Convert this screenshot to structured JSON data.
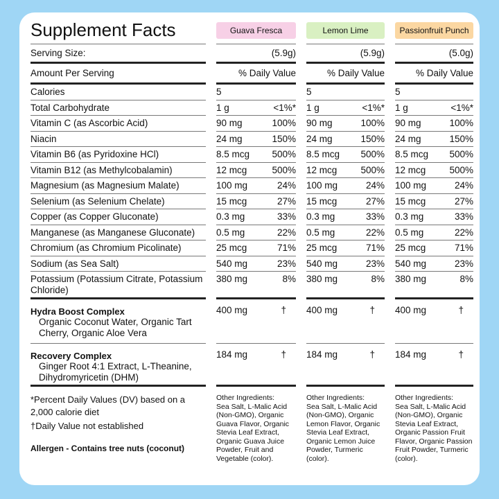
{
  "title": "Supplement Facts",
  "serving_label": "Serving Size:",
  "amount_label": "Amount Per Serving",
  "dv_label": "% Daily Value",
  "nutrients": [
    "Calories",
    "Total Carbohydrate",
    "Vitamin C (as Ascorbic Acid)",
    "Niacin",
    "Vitamin B6  (as Pyridoxine HCl)",
    "Vitamin B12 (as Methylcobalamin)",
    "Magnesium (as Magnesium Malate)",
    "Selenium (as Selenium Chelate)",
    "Copper (as Copper Gluconate)",
    "Manganese (as Manganese Gluconate)",
    "Chromium (as Chromium Picolinate)",
    "Sodium (as Sea Salt)",
    "Potassium (Potassium Citrate, Potassium Chloride)"
  ],
  "blends": [
    {
      "name": "Hydra Boost Complex",
      "ingredients": "Organic Coconut Water, Organic Tart Cherry, Organic Aloe Vera"
    },
    {
      "name": "Recovery Complex",
      "ingredients": "Ginger Root 4:1 Extract, L-Theanine, Dihydromyricetin (DHM)"
    }
  ],
  "flavors": [
    {
      "name": "Guava Fresca",
      "serving": "(5.9g)",
      "values": [
        [
          "5"
        ],
        [
          "1 g",
          "<1%*"
        ],
        [
          "90 mg",
          "100%"
        ],
        [
          "24 mg",
          "150%"
        ],
        [
          "8.5 mcg",
          "500%"
        ],
        [
          "12 mcg",
          "500%"
        ],
        [
          "100 mg",
          "24%"
        ],
        [
          "15 mcg",
          "27%"
        ],
        [
          "0.3 mg",
          "33%"
        ],
        [
          "0.5 mg",
          "22%"
        ],
        [
          "25 mcg",
          "71%"
        ],
        [
          "540 mg",
          "23%"
        ],
        [
          "380 mg",
          "8%"
        ]
      ],
      "blends": [
        [
          "400 mg",
          "†"
        ],
        [
          "184 mg",
          "†"
        ]
      ],
      "other_label": "Other Ingredients:",
      "other_ingredients": "Sea Salt, L-Malic Acid (Non-GMO), Organic Guava Flavor, Organic Stevia Leaf Extract, Organic Guava Juice Powder, Fruit and Vegetable (color)."
    },
    {
      "name": "Lemon Lime",
      "serving": "(5.9g)",
      "values": [
        [
          "5"
        ],
        [
          "1 g",
          "<1%*"
        ],
        [
          "90 mg",
          "100%"
        ],
        [
          "24 mg",
          "150%"
        ],
        [
          "8.5 mcg",
          "500%"
        ],
        [
          "12 mcg",
          "500%"
        ],
        [
          "100 mg",
          "24%"
        ],
        [
          "15 mcg",
          "27%"
        ],
        [
          "0.3 mg",
          "33%"
        ],
        [
          "0.5 mg",
          "22%"
        ],
        [
          "25 mcg",
          "71%"
        ],
        [
          "540 mg",
          "23%"
        ],
        [
          "380 mg",
          "8%"
        ]
      ],
      "blends": [
        [
          "400 mg",
          "†"
        ],
        [
          "184 mg",
          "†"
        ]
      ],
      "other_label": "Other Ingredients:",
      "other_ingredients": "Sea Salt, L-Malic Acid (Non-GMO), Organic Lemon Flavor, Organic Stevia Leaf Extract, Organic Lemon Juice Powder, Turmeric (color)."
    },
    {
      "name": "Passionfruit Punch",
      "serving": "(5.0g)",
      "values": [
        [
          "5"
        ],
        [
          "1 g",
          "<1%*"
        ],
        [
          "90 mg",
          "100%"
        ],
        [
          "24 mg",
          "150%"
        ],
        [
          "8.5 mcg",
          "500%"
        ],
        [
          "12 mcg",
          "500%"
        ],
        [
          "100 mg",
          "24%"
        ],
        [
          "15 mcg",
          "27%"
        ],
        [
          "0.3 mg",
          "33%"
        ],
        [
          "0.5 mg",
          "22%"
        ],
        [
          "25 mcg",
          "71%"
        ],
        [
          "540 mg",
          "23%"
        ],
        [
          "380 mg",
          "8%"
        ]
      ],
      "blends": [
        [
          "400 mg",
          "†"
        ],
        [
          "184 mg",
          "†"
        ]
      ],
      "other_label": "Other Ingredients:",
      "other_ingredients": "Sea Salt, L-Malic Acid (Non-GMO), Organic Stevia Leaf Extract, Organic Passion Fruit Flavor, Organic Passion Fruit Powder, Turmeric (color)."
    }
  ],
  "footnotes": [
    "*Percent Daily Values (DV) based on a 2,000 calorie diet",
    "†Daily Value not established"
  ],
  "allergen": "Allergen - Contains tree nuts (coconut)"
}
